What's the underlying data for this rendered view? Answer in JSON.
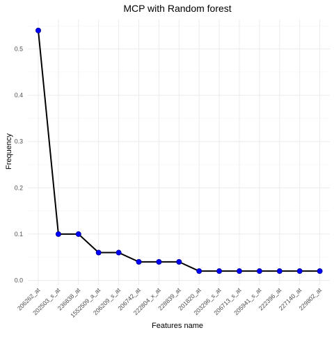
{
  "chart_data": {
    "type": "line",
    "title": "MCP with Random forest",
    "xlabel": "Features name",
    "ylabel": "Frequency",
    "categories": [
      "206262_at",
      "202503_s_at",
      "236838_at",
      "1552509_a_at",
      "206209_s_at",
      "206742_at",
      "222804_x_at",
      "228839_at",
      "201820_at",
      "203296_s_at",
      "206713_s_at",
      "205941_s_at",
      "222396_at",
      "227140_at",
      "229802_at"
    ],
    "values": [
      0.54,
      0.1,
      0.1,
      0.06,
      0.06,
      0.04,
      0.04,
      0.04,
      0.02,
      0.02,
      0.02,
      0.02,
      0.02,
      0.02,
      0.02
    ],
    "ylim": [
      0,
      0.56
    ],
    "yticks": [
      "0.0",
      "0.1",
      "0.2",
      "0.3",
      "0.4",
      "0.5"
    ],
    "grid": true,
    "line_color": "#000000",
    "point_color": "#0000ff",
    "point_outline": "#00008b"
  }
}
